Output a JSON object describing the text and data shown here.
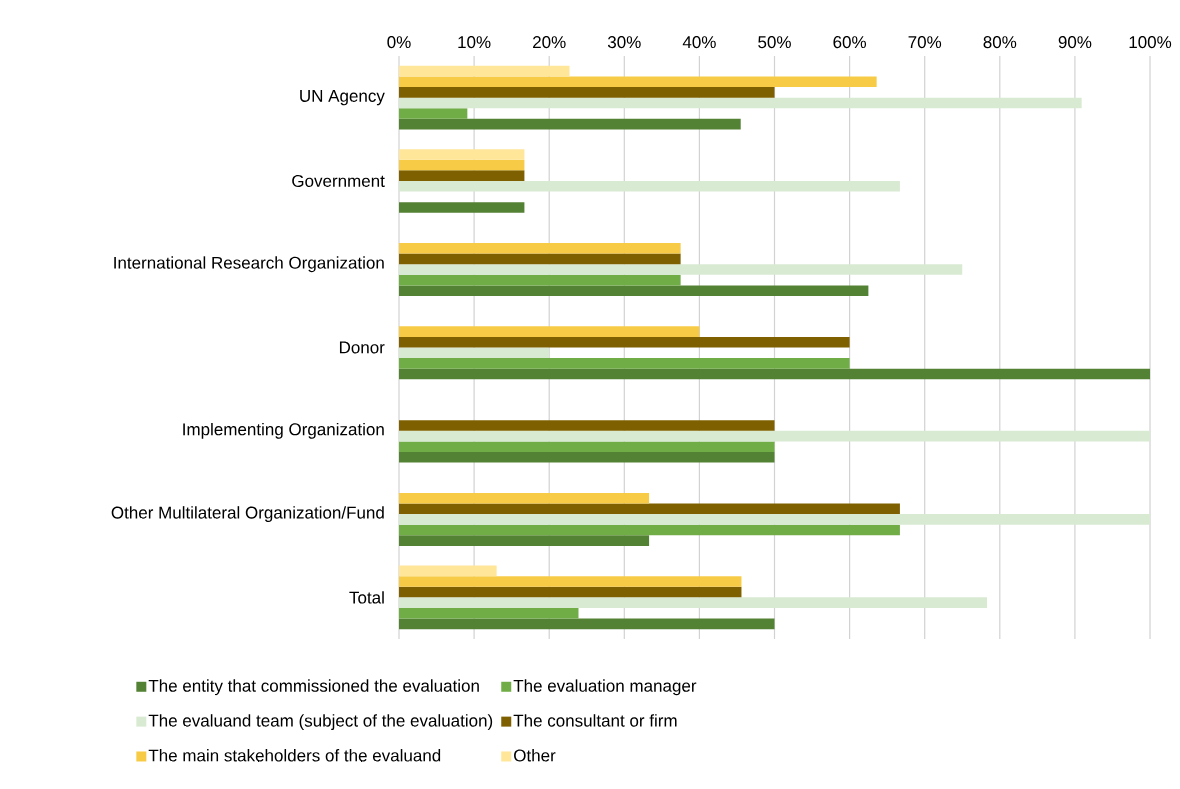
{
  "chart_data": {
    "type": "bar",
    "orientation": "horizontal",
    "categories": [
      "UN Agency",
      "Government",
      "International Research Organization",
      "Donor",
      "Implementing Organization",
      "Other Multilateral Organization/Fund",
      "Total"
    ],
    "series": [
      {
        "name": "The entity that commissioned the evaluation",
        "color": "#548235",
        "values": [
          45.5,
          16.7,
          62.5,
          100,
          50,
          33.3,
          50
        ]
      },
      {
        "name": "The evaluation manager",
        "color": "#70ad47",
        "values": [
          9.1,
          null,
          37.5,
          60,
          50,
          66.7,
          23.9
        ]
      },
      {
        "name": "The evaluand team (subject of the evaluation)",
        "color": "#d9ead3",
        "values": [
          90.9,
          66.7,
          75,
          20,
          100,
          100,
          78.3
        ]
      },
      {
        "name": "The consultant or firm",
        "color": "#7f6000",
        "values": [
          50,
          16.7,
          37.5,
          60,
          50,
          66.7,
          45.6
        ]
      },
      {
        "name": "The main stakeholders of the evaluand",
        "color": "#f8cb46",
        "values": [
          63.6,
          16.7,
          37.5,
          40,
          null,
          33.3,
          45.6
        ]
      },
      {
        "name": "Other",
        "color": "#ffe699",
        "values": [
          22.7,
          16.7,
          null,
          null,
          null,
          null,
          13.0
        ]
      }
    ],
    "xlim": [
      0,
      100
    ],
    "xticks": [
      {
        "value": 0,
        "label": "0%"
      },
      {
        "value": 10,
        "label": "10%"
      },
      {
        "value": 20,
        "label": "20%"
      },
      {
        "value": 30,
        "label": "30%"
      },
      {
        "value": 40,
        "label": "40%"
      },
      {
        "value": 50,
        "label": "50%"
      },
      {
        "value": 60,
        "label": "60%"
      },
      {
        "value": 70,
        "label": "70%"
      },
      {
        "value": 80,
        "label": "80%"
      },
      {
        "value": 90,
        "label": "90%"
      },
      {
        "value": 100,
        "label": "100%"
      }
    ],
    "grid": "x",
    "legend": "bottom"
  }
}
